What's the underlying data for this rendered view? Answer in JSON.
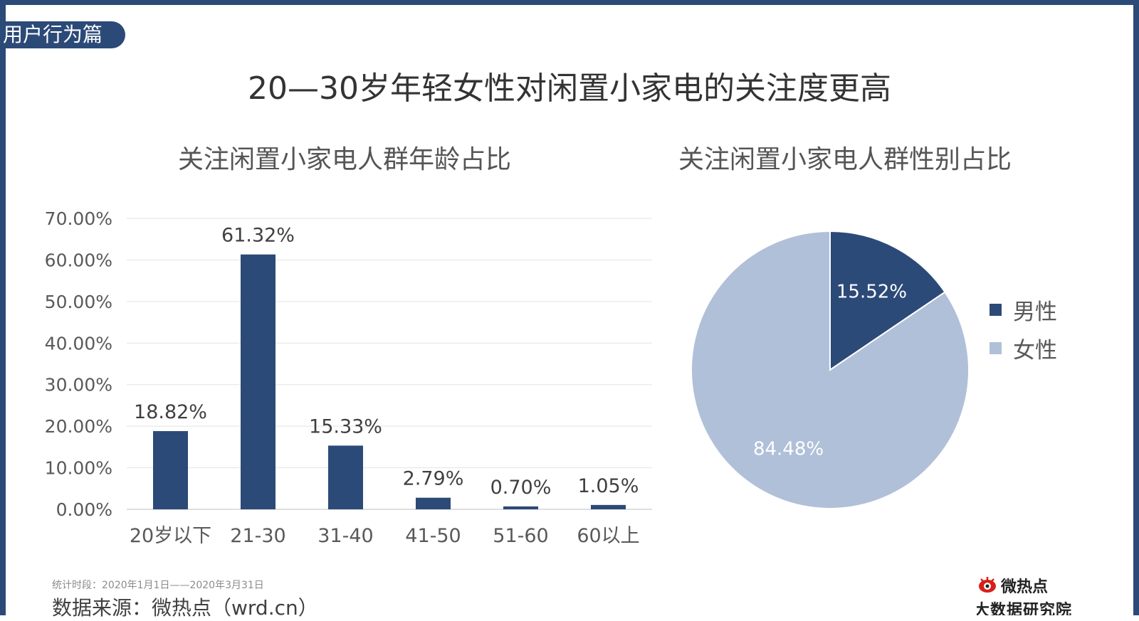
{
  "section_tag": "用户行为篇",
  "page_title": "20—30岁年轻女性对闲置小家电的关注度更高",
  "colors": {
    "primary": "#2c4a78",
    "light": "#b0c0d9"
  },
  "chart_data": [
    {
      "type": "bar",
      "title": "关注闲置小家电人群年龄占比",
      "categories": [
        "20岁以下",
        "21-30",
        "31-40",
        "41-50",
        "51-60",
        "60以上"
      ],
      "values": [
        18.82,
        61.32,
        15.33,
        2.79,
        0.7,
        1.05
      ],
      "value_labels": [
        "18.82%",
        "61.32%",
        "15.33%",
        "2.79%",
        "0.70%",
        "1.05%"
      ],
      "ylim": [
        0,
        70
      ],
      "yticks": [
        0,
        10,
        20,
        30,
        40,
        50,
        60,
        70
      ],
      "ytick_labels": [
        "0.00%",
        "10.00%",
        "20.00%",
        "30.00%",
        "40.00%",
        "50.00%",
        "60.00%",
        "70.00%"
      ],
      "xlabel": "",
      "ylabel": "",
      "grid": true,
      "legend": "none",
      "color": "#2c4a78"
    },
    {
      "type": "pie",
      "title": "关注闲置小家电人群性别占比",
      "slices": [
        {
          "label": "男性",
          "value": 15.52,
          "value_label": "15.52%",
          "color": "#2c4a78"
        },
        {
          "label": "女性",
          "value": 84.48,
          "value_label": "84.48%",
          "color": "#b0c0d9"
        }
      ],
      "legend": "right"
    }
  ],
  "footer": {
    "period": "统计时段：2020年1月1日——2020年3月31日",
    "source": "数据来源：微热点（wrd.cn）"
  },
  "logo": {
    "line1": "微热点",
    "line2": "大数据研究院"
  }
}
